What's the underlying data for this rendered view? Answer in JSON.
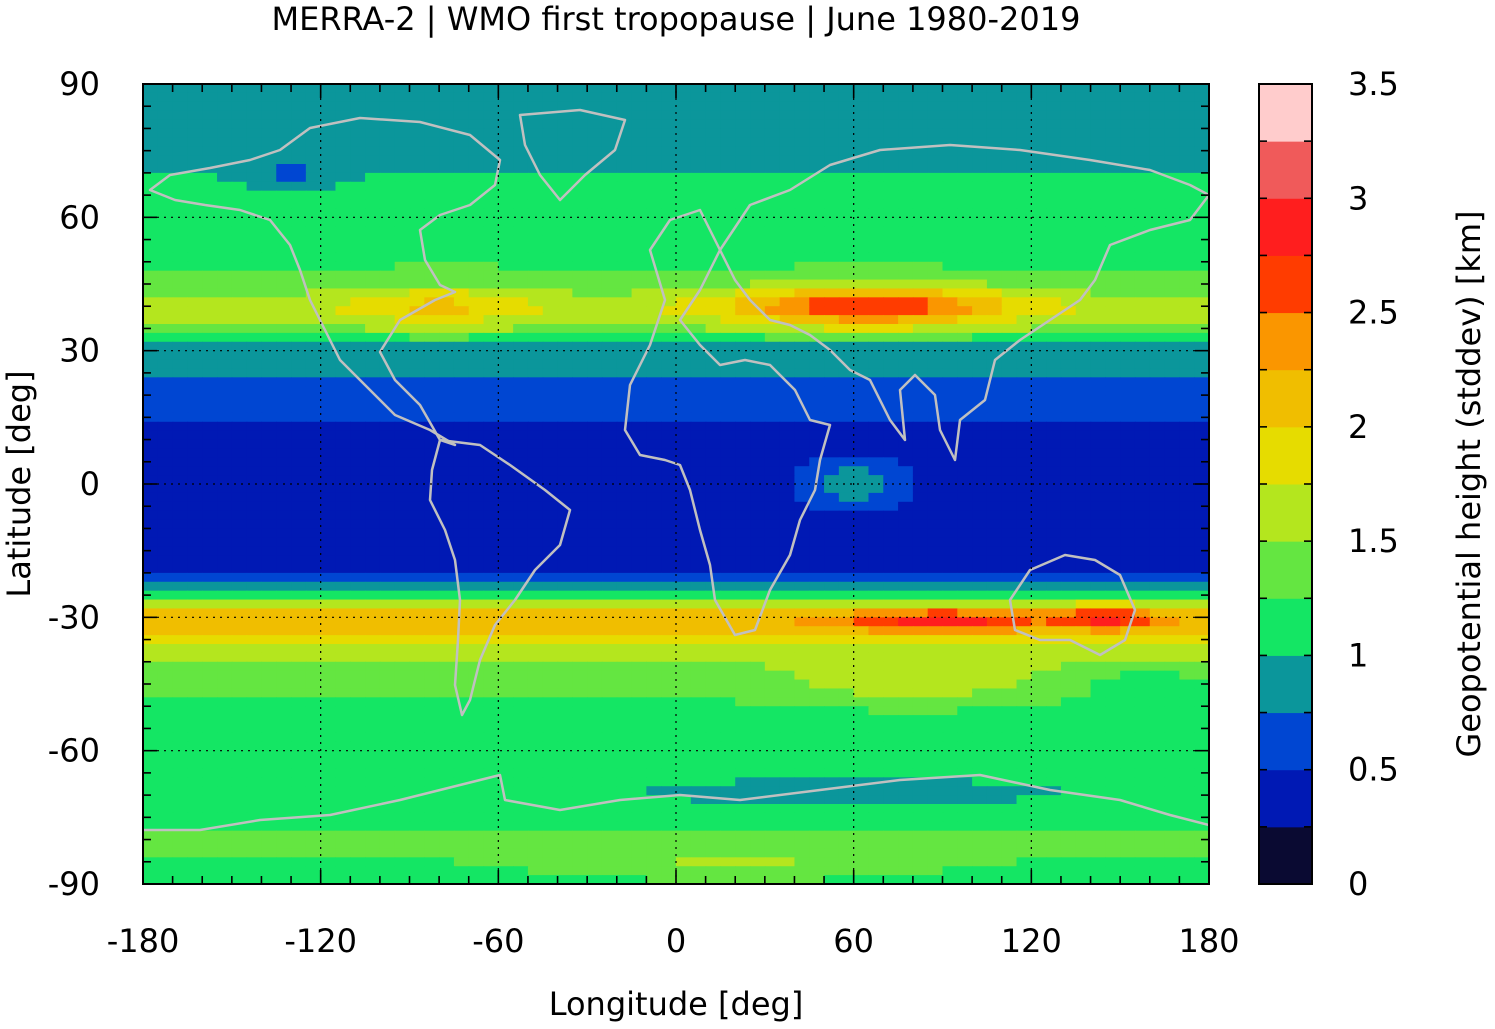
{
  "chart_data": {
    "type": "heatmap",
    "title": "MERRA-2 | WMO first tropopause | June 1980-2019",
    "xlabel": "Longitude [deg]",
    "ylabel": "Latitude [deg]",
    "xlim": [
      -180,
      180
    ],
    "ylim": [
      -90,
      90
    ],
    "xticks": [
      -180,
      -120,
      -60,
      0,
      60,
      120,
      180
    ],
    "xtick_labels": [
      "-180",
      "-120",
      "-60",
      "0",
      "60",
      "120",
      "180"
    ],
    "yticks": [
      90,
      60,
      30,
      0,
      -30,
      -60,
      -90
    ],
    "ytick_labels": [
      "90",
      "60",
      "30",
      "0",
      "-30",
      "-60",
      "-90"
    ],
    "grid": true,
    "colorbar": {
      "label": "Geopotential height (stddev) [km]",
      "range": [
        0,
        3.5
      ],
      "ticks": [
        0,
        0.5,
        1,
        1.5,
        2,
        2.5,
        3,
        3.5
      ],
      "tick_labels": [
        "0",
        "0.5",
        "1",
        "1.5",
        "2",
        "2.5",
        "3",
        "3.5"
      ],
      "levels": [
        0,
        0.25,
        0.5,
        0.75,
        1,
        1.25,
        1.5,
        1.75,
        2,
        2.25,
        2.5,
        2.75,
        3,
        3.25,
        3.5
      ],
      "colors": [
        "#0a0a32",
        "#0019b4",
        "#0046d2",
        "#0b969b",
        "#14e664",
        "#64e641",
        "#b4e61e",
        "#e6dc00",
        "#f0be00",
        "#fa9600",
        "#ff3c00",
        "#ff1e1e",
        "#f05a5a",
        "#ffcccc"
      ]
    },
    "zonal_profile": {
      "lat": [
        -90,
        -80,
        -70,
        -60,
        -50,
        -40,
        -35,
        -30,
        -25,
        -20,
        -10,
        0,
        10,
        20,
        25,
        30,
        35,
        40,
        45,
        50,
        60,
        70,
        80,
        90
      ],
      "value": [
        1.15,
        1.3,
        1.0,
        1.1,
        1.2,
        1.5,
        1.8,
        2.3,
        1.1,
        0.5,
        0.4,
        0.45,
        0.4,
        0.6,
        0.8,
        0.8,
        1.4,
        1.7,
        1.3,
        1.2,
        1.1,
        1.0,
        0.9,
        0.8
      ]
    },
    "features": [
      {
        "lon": 65,
        "lat": 40,
        "amp": 1.1,
        "slon": 45,
        "slat": 5
      },
      {
        "lon": 90,
        "lat": -31,
        "amp": 0.7,
        "slon": 30,
        "slat": 3
      },
      {
        "lon": 145,
        "lat": -30,
        "amp": 0.7,
        "slon": 15,
        "slat": 3
      },
      {
        "lon": 60,
        "lat": 0,
        "amp": 0.5,
        "slon": 15,
        "slat": 5
      },
      {
        "lon": -80,
        "lat": 40,
        "amp": 0.4,
        "slon": 30,
        "slat": 6
      },
      {
        "lon": 80,
        "lat": -45,
        "amp": 0.3,
        "slon": 40,
        "slat": 5
      },
      {
        "lon": 20,
        "lat": -85,
        "amp": 0.3,
        "slon": 60,
        "slat": 4
      },
      {
        "lon": -130,
        "lat": 70,
        "amp": -0.3,
        "slon": 15,
        "slat": 3
      },
      {
        "lon": 160,
        "lat": -45,
        "amp": -0.3,
        "slon": 20,
        "slat": 4
      },
      {
        "lon": 60,
        "lat": -70,
        "amp": -0.2,
        "slon": 40,
        "slat": 3
      }
    ]
  }
}
